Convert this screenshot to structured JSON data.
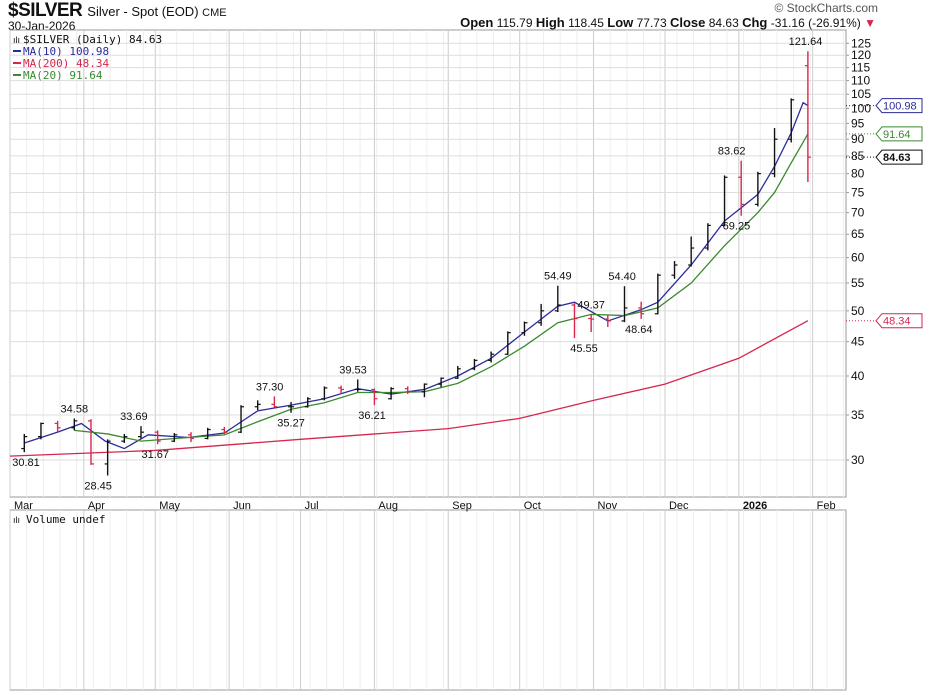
{
  "header": {
    "symbol": "$SILVER",
    "description": "Silver - Spot (EOD)",
    "exchange": "CME",
    "date": "30-Jan-2026",
    "brand": "© StockCharts.com",
    "open_label": "Open",
    "open": "115.79",
    "high_label": "High",
    "high": "118.45",
    "low_label": "Low",
    "low": "77.73",
    "close_label": "Close",
    "close": "84.63",
    "chg_label": "Chg",
    "chg": "-31.16 (-26.91%)",
    "chg_arrow": "▼"
  },
  "legend": {
    "main": "$SILVER (Daily) 84.63",
    "ma10": "MA(10) 100.98",
    "ma200": "MA(200) 48.34",
    "ma20": "MA(20) 91.64",
    "volume": "Volume undef"
  },
  "colors": {
    "ma10": "#2b2b9b",
    "ma200": "#d6264c",
    "ma20": "#3b8a2f",
    "up": "#111111",
    "down": "#d6264c",
    "grid": "#dddddd"
  },
  "chart_data": {
    "type": "ohlc",
    "scale": "log",
    "ylim": [
      26,
      128
    ],
    "xlim": [
      "2025-03-01",
      "2026-02-15"
    ],
    "grid": true,
    "legend_position": "top-left",
    "yticks": [
      30,
      35,
      40,
      45,
      50,
      55,
      60,
      65,
      70,
      75,
      80,
      85,
      90,
      95,
      100,
      105,
      110,
      115,
      120,
      125
    ],
    "xticks": [
      {
        "date": "2025-03-01",
        "label": "Mar"
      },
      {
        "date": "2025-04-01",
        "label": "Apr"
      },
      {
        "date": "2025-05-01",
        "label": "May"
      },
      {
        "date": "2025-06-01",
        "label": "Jun"
      },
      {
        "date": "2025-07-01",
        "label": "Jul"
      },
      {
        "date": "2025-08-01",
        "label": "Aug"
      },
      {
        "date": "2025-09-01",
        "label": "Sep"
      },
      {
        "date": "2025-10-01",
        "label": "Oct"
      },
      {
        "date": "2025-11-01",
        "label": "Nov"
      },
      {
        "date": "2025-12-01",
        "label": "Dec"
      },
      {
        "date": "2026-01-01",
        "label": "2026"
      },
      {
        "date": "2026-02-01",
        "label": "Feb"
      }
    ],
    "bars": [
      [
        "2025-03-07",
        31.2,
        32.8,
        30.81,
        32.5
      ],
      [
        "2025-03-14",
        32.5,
        34.1,
        32.2,
        34.0
      ],
      [
        "2025-03-21",
        34.0,
        34.3,
        33.0,
        33.5
      ],
      [
        "2025-03-28",
        33.5,
        34.58,
        33.2,
        34.3
      ],
      [
        "2025-04-04",
        34.3,
        34.5,
        29.5,
        29.6
      ],
      [
        "2025-04-11",
        29.6,
        32.2,
        28.45,
        32.0
      ],
      [
        "2025-04-18",
        32.0,
        32.8,
        31.8,
        32.5
      ],
      [
        "2025-04-25",
        32.5,
        33.69,
        32.3,
        33.0
      ],
      [
        "2025-05-02",
        33.0,
        33.2,
        31.67,
        32.0
      ],
      [
        "2025-05-09",
        32.0,
        32.9,
        31.9,
        32.7
      ],
      [
        "2025-05-16",
        32.7,
        33.0,
        31.9,
        32.3
      ],
      [
        "2025-05-23",
        32.3,
        33.5,
        32.2,
        33.3
      ],
      [
        "2025-05-30",
        33.3,
        33.6,
        32.8,
        33.0
      ],
      [
        "2025-06-06",
        33.0,
        36.2,
        32.9,
        36.0
      ],
      [
        "2025-06-13",
        36.0,
        36.8,
        35.6,
        36.3
      ],
      [
        "2025-06-20",
        36.3,
        37.3,
        35.9,
        36.0
      ],
      [
        "2025-06-27",
        36.0,
        36.6,
        35.27,
        36.0
      ],
      [
        "2025-07-04",
        36.0,
        37.2,
        35.9,
        37.0
      ],
      [
        "2025-07-11",
        37.0,
        38.6,
        36.8,
        38.4
      ],
      [
        "2025-07-18",
        38.4,
        38.7,
        37.6,
        38.2
      ],
      [
        "2025-07-25",
        38.2,
        39.53,
        37.9,
        38.2
      ],
      [
        "2025-08-01",
        38.2,
        38.3,
        36.21,
        37.0
      ],
      [
        "2025-08-08",
        37.0,
        38.5,
        36.9,
        38.3
      ],
      [
        "2025-08-15",
        38.3,
        38.6,
        37.6,
        37.9
      ],
      [
        "2025-08-22",
        37.9,
        39.0,
        37.2,
        38.9
      ],
      [
        "2025-08-29",
        38.9,
        39.8,
        38.5,
        39.7
      ],
      [
        "2025-09-05",
        39.7,
        41.4,
        39.6,
        41.0
      ],
      [
        "2025-09-12",
        41.0,
        42.4,
        40.8,
        42.2
      ],
      [
        "2025-09-19",
        42.2,
        43.5,
        41.9,
        43.1
      ],
      [
        "2025-09-26",
        43.1,
        46.6,
        43.0,
        46.4
      ],
      [
        "2025-10-03",
        46.4,
        48.2,
        45.9,
        48.0
      ],
      [
        "2025-10-10",
        48.0,
        51.2,
        47.5,
        50.0
      ],
      [
        "2025-10-17",
        50.0,
        54.49,
        49.8,
        51.0
      ],
      [
        "2025-10-24",
        51.0,
        51.3,
        45.55,
        48.7
      ],
      [
        "2025-10-31",
        48.7,
        49.37,
        46.5,
        48.6
      ],
      [
        "2025-11-07",
        48.6,
        49.2,
        47.3,
        48.3
      ],
      [
        "2025-11-14",
        48.3,
        54.4,
        48.1,
        50.5
      ],
      [
        "2025-11-21",
        50.5,
        51.6,
        48.64,
        49.5
      ],
      [
        "2025-11-28",
        49.5,
        56.8,
        49.4,
        56.5
      ],
      [
        "2025-12-05",
        56.5,
        59.3,
        55.8,
        58.5
      ],
      [
        "2025-12-12",
        58.5,
        64.5,
        58.2,
        62.0
      ],
      [
        "2025-12-19",
        62.0,
        67.5,
        61.5,
        67.0
      ],
      [
        "2025-12-26",
        67.0,
        79.5,
        66.8,
        79.0
      ],
      [
        "2026-01-02",
        79.0,
        83.62,
        69.25,
        72.0
      ],
      [
        "2026-01-09",
        72.0,
        80.5,
        71.5,
        80.0
      ],
      [
        "2026-01-16",
        80.0,
        93.5,
        79.0,
        90.0
      ],
      [
        "2026-01-23",
        90.0,
        103.5,
        89.0,
        103.0
      ],
      [
        "2026-01-30",
        115.79,
        121.64,
        77.73,
        84.63
      ]
    ],
    "series": [
      {
        "name": "MA(10)",
        "key": "ma10",
        "points": [
          [
            "2025-03-07",
            31.8
          ],
          [
            "2025-03-21",
            33.0
          ],
          [
            "2025-03-31",
            34.0
          ],
          [
            "2025-04-10",
            32.0
          ],
          [
            "2025-04-18",
            31.2
          ],
          [
            "2025-04-28",
            32.7
          ],
          [
            "2025-05-15",
            32.4
          ],
          [
            "2025-05-30",
            32.9
          ],
          [
            "2025-06-13",
            35.5
          ],
          [
            "2025-06-27",
            36.2
          ],
          [
            "2025-07-11",
            37.0
          ],
          [
            "2025-07-25",
            38.3
          ],
          [
            "2025-08-08",
            37.6
          ],
          [
            "2025-08-22",
            38.2
          ],
          [
            "2025-09-05",
            40.0
          ],
          [
            "2025-09-19",
            42.5
          ],
          [
            "2025-10-03",
            46.5
          ],
          [
            "2025-10-17",
            50.8
          ],
          [
            "2025-10-24",
            51.5
          ],
          [
            "2025-11-07",
            48.3
          ],
          [
            "2025-11-21",
            50.2
          ],
          [
            "2025-11-28",
            51.5
          ],
          [
            "2025-12-12",
            58.5
          ],
          [
            "2025-12-26",
            68.0
          ],
          [
            "2026-01-09",
            74.5
          ],
          [
            "2026-01-16",
            82.0
          ],
          [
            "2026-01-23",
            92.0
          ],
          [
            "2026-01-28",
            102.0
          ],
          [
            "2026-01-30",
            100.98
          ]
        ]
      },
      {
        "name": "MA(20)",
        "key": "ma20",
        "points": [
          [
            "2025-03-28",
            33.2
          ],
          [
            "2025-04-11",
            32.8
          ],
          [
            "2025-04-25",
            32.0
          ],
          [
            "2025-05-15",
            32.4
          ],
          [
            "2025-05-30",
            32.7
          ],
          [
            "2025-06-13",
            34.2
          ],
          [
            "2025-06-27",
            35.7
          ],
          [
            "2025-07-11",
            36.5
          ],
          [
            "2025-07-25",
            37.8
          ],
          [
            "2025-08-08",
            37.8
          ],
          [
            "2025-08-22",
            37.9
          ],
          [
            "2025-09-05",
            39.0
          ],
          [
            "2025-09-19",
            41.3
          ],
          [
            "2025-10-03",
            44.3
          ],
          [
            "2025-10-17",
            48.0
          ],
          [
            "2025-10-31",
            49.4
          ],
          [
            "2025-11-14",
            49.2
          ],
          [
            "2025-11-28",
            50.5
          ],
          [
            "2025-12-12",
            55.0
          ],
          [
            "2025-12-26",
            62.5
          ],
          [
            "2026-01-09",
            70.0
          ],
          [
            "2026-01-16",
            75.0
          ],
          [
            "2026-01-23",
            83.0
          ],
          [
            "2026-01-30",
            91.64
          ]
        ]
      },
      {
        "name": "MA(200)",
        "key": "ma200",
        "points": [
          [
            "2025-03-01",
            30.4
          ],
          [
            "2025-05-01",
            31.0
          ],
          [
            "2025-07-01",
            32.2
          ],
          [
            "2025-09-01",
            33.4
          ],
          [
            "2025-10-01",
            34.6
          ],
          [
            "2025-11-01",
            36.8
          ],
          [
            "2025-12-01",
            38.9
          ],
          [
            "2026-01-01",
            42.5
          ],
          [
            "2026-01-30",
            48.34
          ]
        ]
      }
    ],
    "annotations": [
      {
        "date": "2025-03-03",
        "value": 30.81,
        "label": "30.81",
        "pos": "below"
      },
      {
        "date": "2025-03-28",
        "value": 34.58,
        "label": "34.58",
        "pos": "above"
      },
      {
        "date": "2025-04-07",
        "value": 28.45,
        "label": "28.45",
        "pos": "below"
      },
      {
        "date": "2025-04-22",
        "value": 33.69,
        "label": "33.69",
        "pos": "above"
      },
      {
        "date": "2025-05-01",
        "value": 31.67,
        "label": "31.67",
        "pos": "below"
      },
      {
        "date": "2025-06-18",
        "value": 37.3,
        "label": "37.30",
        "pos": "above"
      },
      {
        "date": "2025-06-27",
        "value": 35.27,
        "label": "35.27",
        "pos": "below"
      },
      {
        "date": "2025-07-23",
        "value": 39.53,
        "label": "39.53",
        "pos": "above"
      },
      {
        "date": "2025-07-31",
        "value": 36.21,
        "label": "36.21",
        "pos": "below"
      },
      {
        "date": "2025-10-17",
        "value": 54.49,
        "label": "54.49",
        "pos": "above"
      },
      {
        "date": "2025-10-28",
        "value": 45.55,
        "label": "45.55",
        "pos": "below"
      },
      {
        "date": "2025-10-31",
        "value": 49.37,
        "label": "49.37",
        "pos": "above"
      },
      {
        "date": "2025-11-13",
        "value": 54.4,
        "label": "54.40",
        "pos": "above"
      },
      {
        "date": "2025-11-20",
        "value": 48.64,
        "label": "48.64",
        "pos": "below"
      },
      {
        "date": "2025-12-29",
        "value": 83.62,
        "label": "83.62",
        "pos": "above"
      },
      {
        "date": "2025-12-31",
        "value": 69.25,
        "label": "69.25",
        "pos": "below"
      },
      {
        "date": "2026-01-29",
        "value": 121.64,
        "label": "121.64",
        "pos": "above"
      }
    ],
    "value_tags": [
      {
        "value": 100.98,
        "label": "100.98",
        "key": "ma10"
      },
      {
        "value": 91.64,
        "label": "91.64",
        "key": "ma20"
      },
      {
        "value": 84.63,
        "label": "84.63",
        "key": "close"
      },
      {
        "value": 48.34,
        "label": "48.34",
        "key": "ma200"
      }
    ]
  }
}
